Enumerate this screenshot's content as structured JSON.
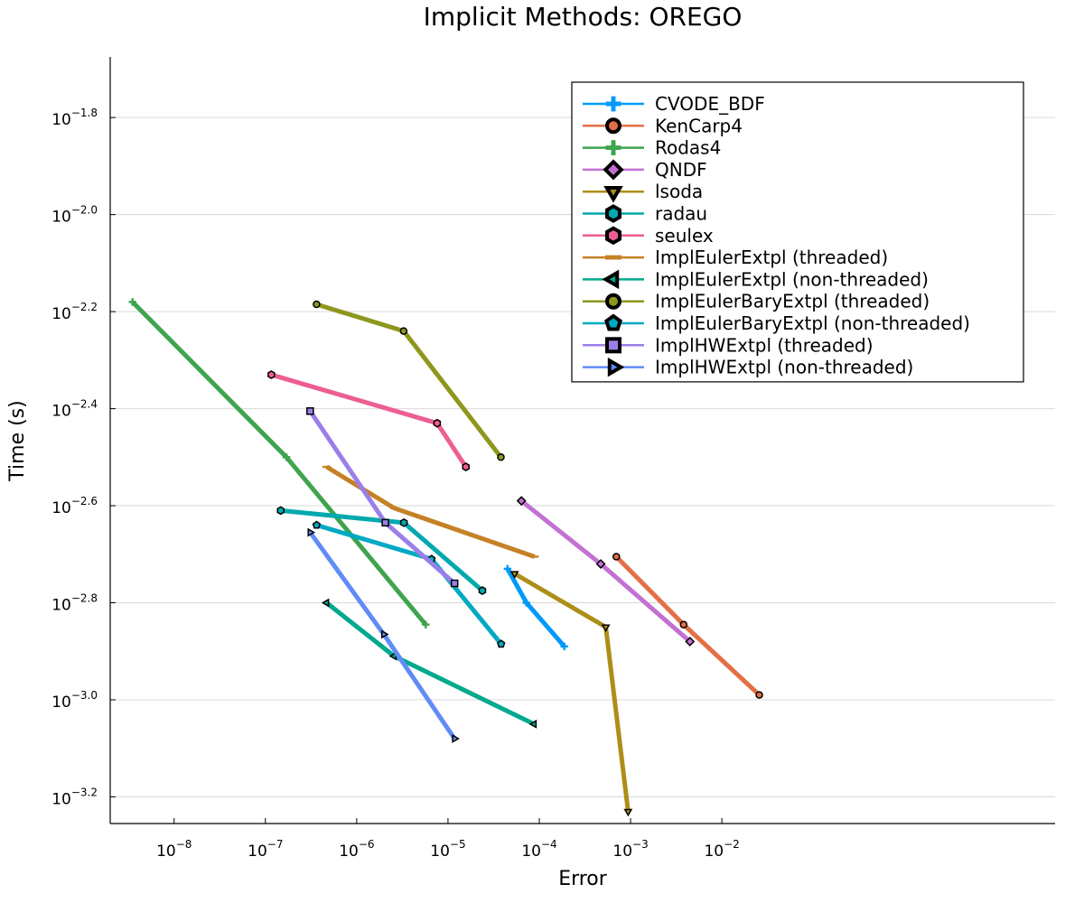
{
  "chart_data": {
    "type": "line",
    "title": "Implicit Methods: OREGO",
    "xlabel": "Error",
    "ylabel": "Time (s)",
    "x_scale": "log10",
    "y_scale": "log10",
    "xlim_log10": [
      -8.7,
      1.65
    ],
    "ylim_log10": [
      -3.255,
      -1.675
    ],
    "x_tick_base": "10",
    "x_tick_exponents": [
      "−8",
      "−7",
      "−6",
      "−5",
      "−4",
      "−3",
      "−2"
    ],
    "y_tick_base": "10",
    "y_tick_exponents": [
      "−1.8",
      "−2.0",
      "−2.2",
      "−2.4",
      "−2.6",
      "−2.8",
      "−3.0",
      "−3.2"
    ],
    "grid": true,
    "legend_position": "top-right",
    "series": [
      {
        "name": "CVODE_BDF",
        "color": "#009AFA",
        "marker": "cross",
        "points": [
          [
            4.49e-05,
            -2.73
          ],
          [
            7.23e-05,
            -2.8
          ],
          [
            0.000188,
            -2.89
          ]
        ]
      },
      {
        "name": "KenCarp4",
        "color": "#E36F47",
        "marker": "circle",
        "points": [
          [
            0.000698,
            -2.705
          ],
          [
            0.00381,
            -2.845
          ],
          [
            0.0257,
            -2.99
          ]
        ]
      },
      {
        "name": "Rodas4",
        "color": "#3EA44E",
        "marker": "cross",
        "points": [
          [
            3.5e-09,
            -2.18
          ],
          [
            1.7e-07,
            -2.5
          ],
          [
            5.7e-06,
            -2.845
          ]
        ]
      },
      {
        "name": "QNDF",
        "color": "#C271D2",
        "marker": "diamond",
        "points": [
          [
            6.37e-05,
            -2.59
          ],
          [
            0.000471,
            -2.72
          ],
          [
            0.00447,
            -2.88
          ]
        ]
      },
      {
        "name": "lsoda",
        "color": "#AC8E18",
        "marker": "triangle-down",
        "points": [
          [
            5.36e-05,
            -2.74
          ],
          [
            0.000535,
            -2.85
          ],
          [
            0.00094,
            -3.23
          ]
        ]
      },
      {
        "name": "radau",
        "color": "#00A9AD",
        "marker": "hexagon",
        "points": [
          [
            1.47e-07,
            -2.61
          ],
          [
            3.29e-06,
            -2.635
          ],
          [
            2.38e-05,
            -2.775
          ]
        ]
      },
      {
        "name": "seulex",
        "color": "#ED5E93",
        "marker": "hexagon",
        "points": [
          [
            1.16e-07,
            -2.33
          ],
          [
            7.61e-06,
            -2.43
          ],
          [
            1.57e-05,
            -2.52
          ]
        ]
      },
      {
        "name": "ImplEulerExtpl (threaded)",
        "color": "#C68125",
        "marker": "hline",
        "points": [
          [
            4.68e-07,
            -2.52
          ],
          [
            2.58e-06,
            -2.605
          ],
          [
            8.88e-05,
            -2.705
          ]
        ]
      },
      {
        "name": "ImplEulerExtpl (non-threaded)",
        "color": "#00A98D",
        "marker": "triangle-left",
        "points": [
          [
            4.68e-07,
            -2.8
          ],
          [
            2.57e-06,
            -2.91
          ],
          [
            8.78e-05,
            -3.05
          ]
        ]
      },
      {
        "name": "ImplEulerBaryExtpl (threaded)",
        "color": "#8E971D",
        "marker": "circle",
        "points": [
          [
            3.63e-07,
            -2.185
          ],
          [
            3.27e-06,
            -2.24
          ],
          [
            3.8e-05,
            -2.5
          ]
        ]
      },
      {
        "name": "ImplEulerBaryExtpl (non-threaded)",
        "color": "#00A9C3",
        "marker": "pentagon",
        "points": [
          [
            3.63e-07,
            -2.64
          ],
          [
            6.61e-06,
            -2.71
          ],
          [
            3.82e-05,
            -2.885
          ]
        ]
      },
      {
        "name": "ImplHWExtpl (threaded)",
        "color": "#9B7FE8",
        "marker": "square",
        "points": [
          [
            3.09e-07,
            -2.405
          ],
          [
            2.06e-06,
            -2.635
          ],
          [
            1.18e-05,
            -2.76
          ]
        ]
      },
      {
        "name": "ImplHWExtpl (non-threaded)",
        "color": "#608CF6",
        "marker": "triangle-right",
        "points": [
          [
            3.09e-07,
            -2.655
          ],
          [
            1.98e-06,
            -2.865
          ],
          [
            1.18e-05,
            -3.08
          ]
        ]
      }
    ]
  }
}
